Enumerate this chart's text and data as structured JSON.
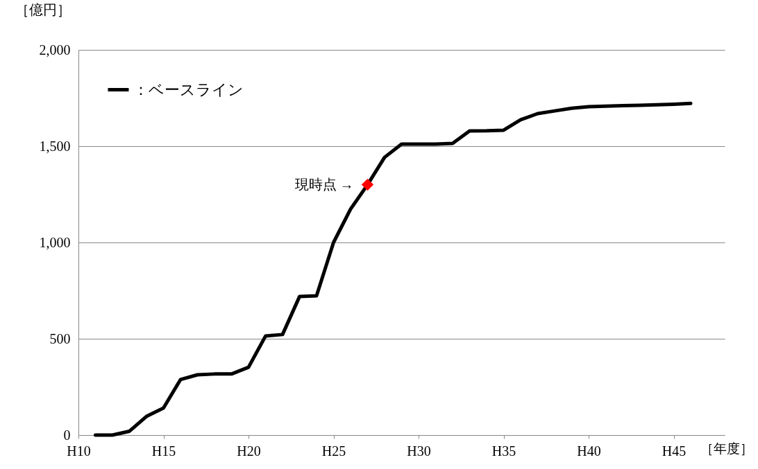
{
  "chart_data": {
    "type": "line",
    "xlabel": "［年度］",
    "ylabel": "［億円］",
    "categories": [
      "H10",
      null,
      null,
      null,
      null,
      "H15",
      null,
      null,
      null,
      null,
      "H20",
      null,
      null,
      null,
      null,
      "H25",
      null,
      null,
      null,
      null,
      "H30",
      null,
      null,
      null,
      null,
      "H35",
      null,
      null,
      null,
      null,
      "H40",
      null,
      null,
      null,
      null,
      "H45",
      null,
      null,
      null
    ],
    "ylim": [
      0,
      2000
    ],
    "yticks": [
      {
        "value": 0,
        "label": "0"
      },
      {
        "value": 500,
        "label": "500"
      },
      {
        "value": 1000,
        "label": "1,000"
      },
      {
        "value": 1500,
        "label": "1,500"
      },
      {
        "value": 2000,
        "label": "2,000"
      }
    ],
    "grid": "y",
    "legend": "top left",
    "series": [
      {
        "name": "：ベースライン",
        "color": "#000000",
        "values": [
          null,
          0,
          0,
          20,
          97,
          140,
          288,
          313,
          317,
          317,
          352,
          514,
          522,
          719,
          723,
          1000,
          1173,
          1300,
          1442,
          1511,
          1511,
          1511,
          1514,
          1579,
          1580,
          1583,
          1637,
          1669,
          1683,
          1697,
          1705,
          1708,
          1710,
          1712,
          1715,
          1718,
          1722,
          null,
          null
        ]
      },
      {
        "type": "scatter",
        "marker": "diamond",
        "color": "#ff0000",
        "values": [
          null,
          null,
          null,
          null,
          null,
          null,
          null,
          null,
          null,
          null,
          null,
          null,
          null,
          null,
          null,
          null,
          null,
          1300,
          null,
          null,
          null,
          null,
          null,
          null,
          null,
          null,
          null,
          null,
          null,
          null,
          null,
          null,
          null,
          null,
          null,
          null,
          null,
          null,
          null
        ]
      }
    ],
    "annotations": [
      "現時点 →"
    ]
  }
}
